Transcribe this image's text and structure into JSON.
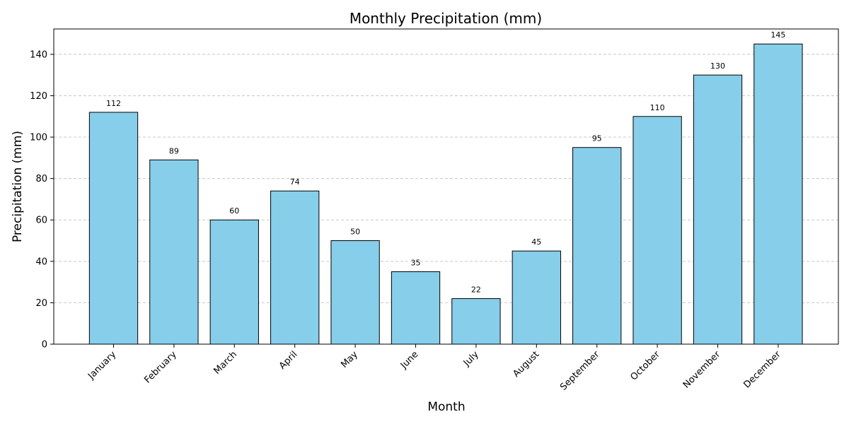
{
  "chart_data": {
    "type": "bar",
    "title": "Monthly Precipitation (mm)",
    "xlabel": "Month",
    "ylabel": "Precipitation (mm)",
    "categories": [
      "January",
      "February",
      "March",
      "April",
      "May",
      "June",
      "July",
      "August",
      "September",
      "October",
      "November",
      "December"
    ],
    "values": [
      112,
      89,
      60,
      74,
      50,
      35,
      22,
      45,
      95,
      110,
      130,
      145
    ],
    "ylim": [
      0,
      152.25
    ],
    "yticks": [
      0,
      20,
      40,
      60,
      80,
      100,
      120,
      140
    ],
    "grid": "y-dashed",
    "legend": "none",
    "bar_color": "#87CEEB",
    "edge_color": "#000000",
    "grid_color": "#c8c8c8"
  }
}
